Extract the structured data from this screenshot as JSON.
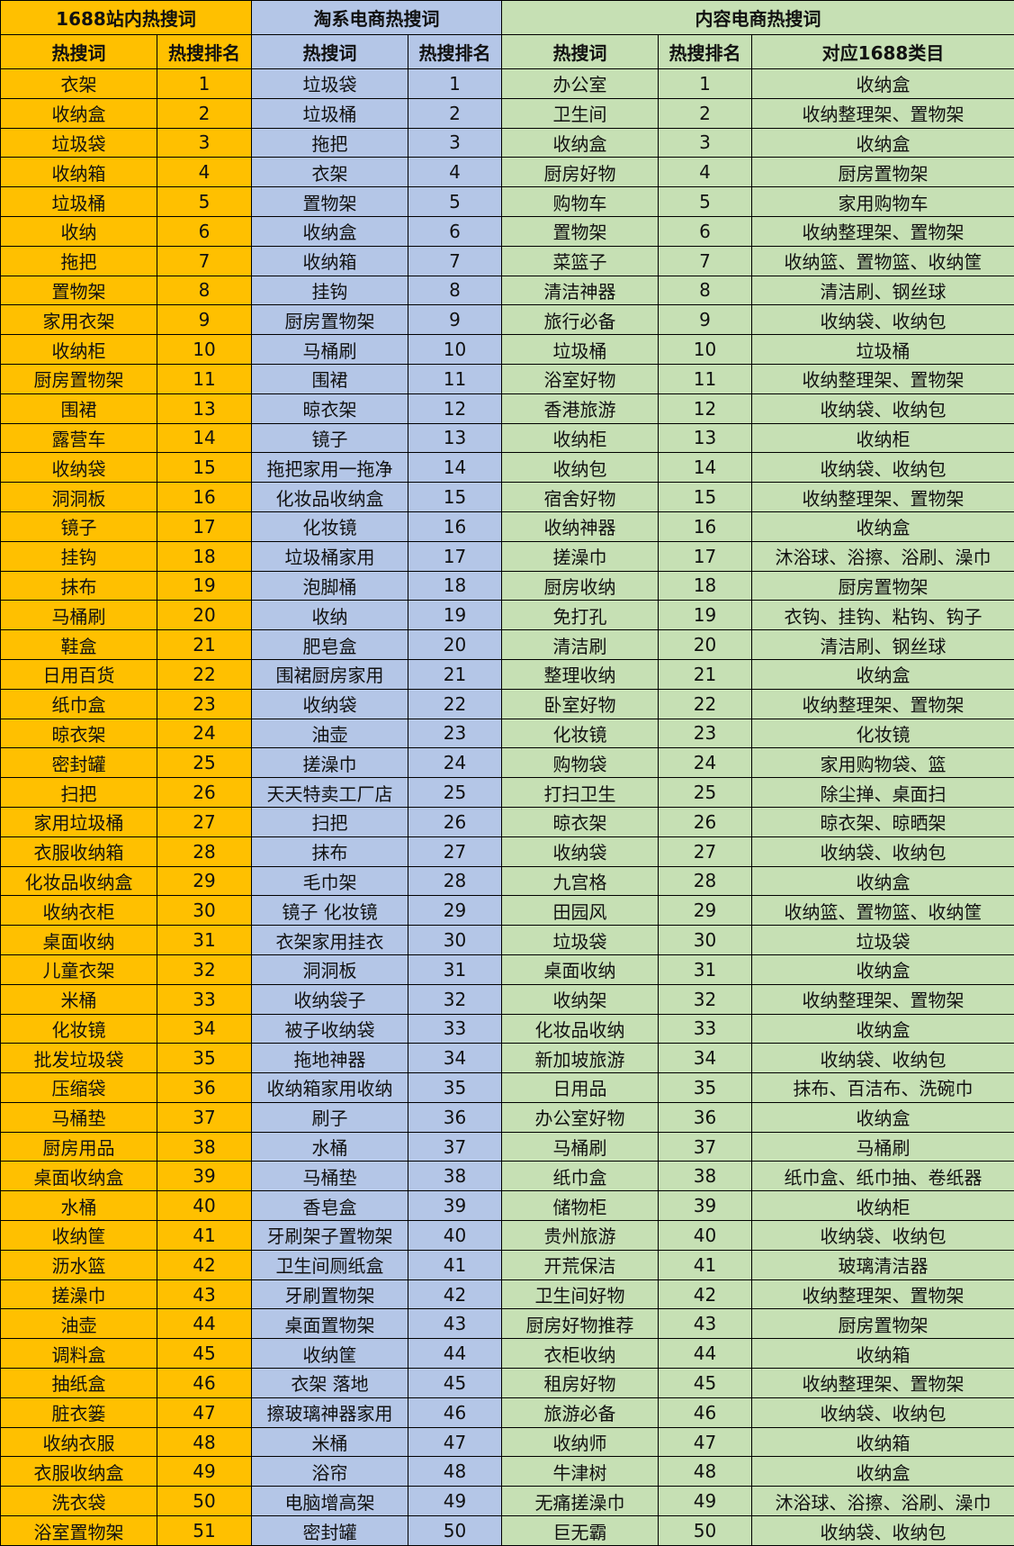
{
  "colors": {
    "group_1688": "#FFC000",
    "group_taoxi": "#B4C6E7",
    "group_content": "#C6E0B4"
  },
  "groups": [
    "1688站内热搜词",
    "淘系电商热搜词",
    "内容电商热搜词"
  ],
  "headers": [
    "热搜词",
    "热搜排名",
    "热搜词",
    "热搜排名",
    "热搜词",
    "热搜排名",
    "对应1688类目"
  ],
  "rows": [
    [
      "衣架",
      "1",
      "垃圾袋",
      "1",
      "办公室",
      "1",
      "收纳盒"
    ],
    [
      "收纳盒",
      "2",
      "垃圾桶",
      "2",
      "卫生间",
      "2",
      "收纳整理架、置物架"
    ],
    [
      "垃圾袋",
      "3",
      "拖把",
      "3",
      "收纳盒",
      "3",
      "收纳盒"
    ],
    [
      "收纳箱",
      "4",
      "衣架",
      "4",
      "厨房好物",
      "4",
      "厨房置物架"
    ],
    [
      "垃圾桶",
      "5",
      "置物架",
      "5",
      "购物车",
      "5",
      "家用购物车"
    ],
    [
      "收纳",
      "6",
      "收纳盒",
      "6",
      "置物架",
      "6",
      "收纳整理架、置物架"
    ],
    [
      "拖把",
      "7",
      "收纳箱",
      "7",
      "菜篮子",
      "7",
      "收纳篮、置物篮、收纳筐"
    ],
    [
      "置物架",
      "8",
      "挂钩",
      "8",
      "清洁神器",
      "8",
      "清洁刷、钢丝球"
    ],
    [
      "家用衣架",
      "9",
      "厨房置物架",
      "9",
      "旅行必备",
      "9",
      "收纳袋、收纳包"
    ],
    [
      "收纳柜",
      "10",
      "马桶刷",
      "10",
      "垃圾桶",
      "10",
      "垃圾桶"
    ],
    [
      "厨房置物架",
      "11",
      "围裙",
      "11",
      "浴室好物",
      "11",
      "收纳整理架、置物架"
    ],
    [
      "围裙",
      "13",
      "晾衣架",
      "12",
      "香港旅游",
      "12",
      "收纳袋、收纳包"
    ],
    [
      "露营车",
      "14",
      "镜子",
      "13",
      "收纳柜",
      "13",
      "收纳柜"
    ],
    [
      "收纳袋",
      "15",
      "拖把家用一拖净",
      "14",
      "收纳包",
      "14",
      "收纳袋、收纳包"
    ],
    [
      "洞洞板",
      "16",
      "化妆品收纳盒",
      "15",
      "宿舍好物",
      "15",
      "收纳整理架、置物架"
    ],
    [
      "镜子",
      "17",
      "化妆镜",
      "16",
      "收纳神器",
      "16",
      "收纳盒"
    ],
    [
      "挂钩",
      "18",
      "垃圾桶家用",
      "17",
      "搓澡巾",
      "17",
      "沐浴球、浴擦、浴刷、澡巾"
    ],
    [
      "抹布",
      "19",
      "泡脚桶",
      "18",
      "厨房收纳",
      "18",
      "厨房置物架"
    ],
    [
      "马桶刷",
      "20",
      "收纳",
      "19",
      "免打孔",
      "19",
      "衣钩、挂钩、粘钩、钩子"
    ],
    [
      "鞋盒",
      "21",
      "肥皂盒",
      "20",
      "清洁刷",
      "20",
      "清洁刷、钢丝球"
    ],
    [
      "日用百货",
      "22",
      "围裙厨房家用",
      "21",
      "整理收纳",
      "21",
      "收纳盒"
    ],
    [
      "纸巾盒",
      "23",
      "收纳袋",
      "22",
      "卧室好物",
      "22",
      "收纳整理架、置物架"
    ],
    [
      "晾衣架",
      "24",
      "油壶",
      "23",
      "化妆镜",
      "23",
      "化妆镜"
    ],
    [
      "密封罐",
      "25",
      "搓澡巾",
      "24",
      "购物袋",
      "24",
      "家用购物袋、篮"
    ],
    [
      "扫把",
      "26",
      "天天特卖工厂店",
      "25",
      "打扫卫生",
      "25",
      "除尘掸、桌面扫"
    ],
    [
      "家用垃圾桶",
      "27",
      "扫把",
      "26",
      "晾衣架",
      "26",
      "晾衣架、晾晒架"
    ],
    [
      "衣服收纳箱",
      "28",
      "抹布",
      "27",
      "收纳袋",
      "27",
      "收纳袋、收纳包"
    ],
    [
      "化妆品收纳盒",
      "29",
      "毛巾架",
      "28",
      "九宫格",
      "28",
      "收纳盒"
    ],
    [
      "收纳衣柜",
      "30",
      "镜子 化妆镜",
      "29",
      "田园风",
      "29",
      "收纳篮、置物篮、收纳筐"
    ],
    [
      "桌面收纳",
      "31",
      "衣架家用挂衣",
      "30",
      "垃圾袋",
      "30",
      "垃圾袋"
    ],
    [
      "儿童衣架",
      "32",
      "洞洞板",
      "31",
      "桌面收纳",
      "31",
      "收纳盒"
    ],
    [
      "米桶",
      "33",
      "收纳袋子",
      "32",
      "收纳架",
      "32",
      "收纳整理架、置物架"
    ],
    [
      "化妆镜",
      "34",
      "被子收纳袋",
      "33",
      "化妆品收纳",
      "33",
      "收纳盒"
    ],
    [
      "批发垃圾袋",
      "35",
      "拖地神器",
      "34",
      "新加坡旅游",
      "34",
      "收纳袋、收纳包"
    ],
    [
      "压缩袋",
      "36",
      "收纳箱家用收纳",
      "35",
      "日用品",
      "35",
      "抹布、百洁布、洗碗巾"
    ],
    [
      "马桶垫",
      "37",
      "刷子",
      "36",
      "办公室好物",
      "36",
      "收纳盒"
    ],
    [
      "厨房用品",
      "38",
      "水桶",
      "37",
      "马桶刷",
      "37",
      "马桶刷"
    ],
    [
      "桌面收纳盒",
      "39",
      "马桶垫",
      "38",
      "纸巾盒",
      "38",
      "纸巾盒、纸巾抽、卷纸器"
    ],
    [
      "水桶",
      "40",
      "香皂盒",
      "39",
      "储物柜",
      "39",
      "收纳柜"
    ],
    [
      "收纳筐",
      "41",
      "牙刷架子置物架",
      "40",
      "贵州旅游",
      "40",
      "收纳袋、收纳包"
    ],
    [
      "沥水篮",
      "42",
      "卫生间厕纸盒",
      "41",
      "开荒保洁",
      "41",
      "玻璃清洁器"
    ],
    [
      "搓澡巾",
      "43",
      "牙刷置物架",
      "42",
      "卫生间好物",
      "42",
      "收纳整理架、置物架"
    ],
    [
      "油壶",
      "44",
      "桌面置物架",
      "43",
      "厨房好物推荐",
      "43",
      "厨房置物架"
    ],
    [
      "调料盒",
      "45",
      "收纳筐",
      "44",
      "衣柜收纳",
      "44",
      "收纳箱"
    ],
    [
      "抽纸盒",
      "46",
      "衣架 落地",
      "45",
      "租房好物",
      "45",
      "收纳整理架、置物架"
    ],
    [
      "脏衣篓",
      "47",
      "擦玻璃神器家用",
      "46",
      "旅游必备",
      "46",
      "收纳袋、收纳包"
    ],
    [
      "收纳衣服",
      "48",
      "米桶",
      "47",
      "收纳师",
      "47",
      "收纳箱"
    ],
    [
      "衣服收纳盒",
      "49",
      "浴帘",
      "48",
      "牛津树",
      "48",
      "收纳盒"
    ],
    [
      "洗衣袋",
      "50",
      "电脑增高架",
      "49",
      "无痛搓澡巾",
      "49",
      "沐浴球、浴擦、浴刷、澡巾"
    ],
    [
      "浴室置物架",
      "51",
      "密封罐",
      "50",
      "巨无霸",
      "50",
      "收纳袋、收纳包"
    ]
  ]
}
